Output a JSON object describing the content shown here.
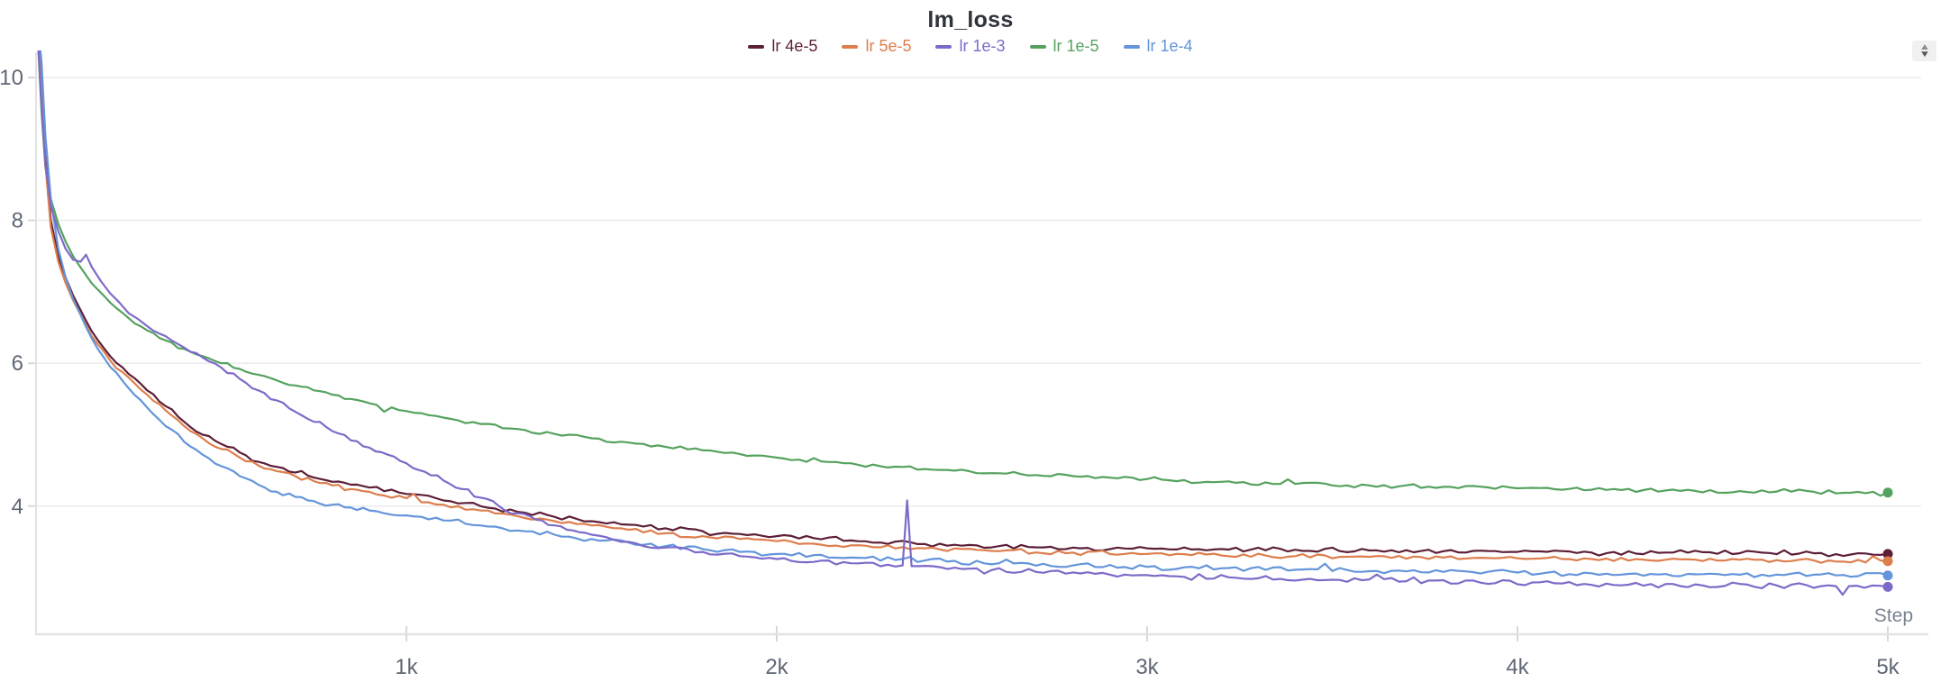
{
  "panel": {
    "stepper_button": {
      "up_icon": "▲",
      "down_icon": "▼"
    }
  },
  "chart_data": {
    "type": "line",
    "title": "lm_loss",
    "xlabel": "Step",
    "ylabel": "",
    "xlim": [
      0,
      5000
    ],
    "ylim": [
      2.2,
      10.35
    ],
    "grid": "horizontal-only",
    "legend_position": "top-center",
    "axis_color": "#e3e3e3",
    "gridline_color": "#ececec",
    "tick_color": "#d8d8d8",
    "tick_label_color": "#5f6775",
    "x_ticks": [
      {
        "label": "1k",
        "value": 1000
      },
      {
        "label": "2k",
        "value": 2000
      },
      {
        "label": "3k",
        "value": 3000
      },
      {
        "label": "4k",
        "value": 4000
      },
      {
        "label": "5k",
        "value": 5000
      }
    ],
    "y_ticks": [
      {
        "label": "10",
        "value": 10
      },
      {
        "label": "8",
        "value": 8
      },
      {
        "label": "6",
        "value": 6
      },
      {
        "label": "4",
        "value": 4
      }
    ],
    "series": [
      {
        "name": "lr 4e-5",
        "color": "#5d1f38",
        "noise": 0.04,
        "points": [
          [
            0,
            11
          ],
          [
            15,
            9.9
          ],
          [
            25,
            8.9
          ],
          [
            40,
            8.0
          ],
          [
            60,
            7.5
          ],
          [
            80,
            7.2
          ],
          [
            100,
            6.95
          ],
          [
            150,
            6.45
          ],
          [
            200,
            6.1
          ],
          [
            250,
            5.85
          ],
          [
            300,
            5.62
          ],
          [
            350,
            5.4
          ],
          [
            400,
            5.18
          ],
          [
            450,
            5.0
          ],
          [
            500,
            4.87
          ],
          [
            550,
            4.75
          ],
          [
            600,
            4.62
          ],
          [
            650,
            4.55
          ],
          [
            700,
            4.47
          ],
          [
            750,
            4.4
          ],
          [
            800,
            4.34
          ],
          [
            850,
            4.3
          ],
          [
            900,
            4.26
          ],
          [
            1000,
            4.17
          ],
          [
            1100,
            4.08
          ],
          [
            1200,
            4.0
          ],
          [
            1300,
            3.92
          ],
          [
            1400,
            3.85
          ],
          [
            1500,
            3.79
          ],
          [
            1600,
            3.74
          ],
          [
            1700,
            3.69
          ],
          [
            1800,
            3.65
          ],
          [
            1900,
            3.61
          ],
          [
            2000,
            3.58
          ],
          [
            2200,
            3.52
          ],
          [
            2400,
            3.47
          ],
          [
            2600,
            3.44
          ],
          [
            2800,
            3.42
          ],
          [
            3000,
            3.41
          ],
          [
            3200,
            3.4
          ],
          [
            3400,
            3.39
          ],
          [
            3600,
            3.38
          ],
          [
            3800,
            3.37
          ],
          [
            4000,
            3.36
          ],
          [
            4200,
            3.35
          ],
          [
            4400,
            3.35
          ],
          [
            4600,
            3.34
          ],
          [
            4800,
            3.34
          ],
          [
            5000,
            3.33
          ]
        ]
      },
      {
        "name": "lr 5e-5",
        "color": "#dd7e4d",
        "noise": 0.04,
        "points": [
          [
            0,
            11
          ],
          [
            15,
            9.8
          ],
          [
            25,
            8.8
          ],
          [
            40,
            7.9
          ],
          [
            60,
            7.42
          ],
          [
            80,
            7.12
          ],
          [
            100,
            6.88
          ],
          [
            150,
            6.38
          ],
          [
            200,
            6.04
          ],
          [
            250,
            5.8
          ],
          [
            300,
            5.56
          ],
          [
            350,
            5.34
          ],
          [
            400,
            5.12
          ],
          [
            450,
            4.95
          ],
          [
            500,
            4.8
          ],
          [
            550,
            4.68
          ],
          [
            600,
            4.57
          ],
          [
            650,
            4.49
          ],
          [
            700,
            4.42
          ],
          [
            750,
            4.35
          ],
          [
            800,
            4.29
          ],
          [
            850,
            4.24
          ],
          [
            900,
            4.2
          ],
          [
            1000,
            4.11
          ],
          [
            1100,
            4.02
          ],
          [
            1200,
            3.94
          ],
          [
            1300,
            3.86
          ],
          [
            1400,
            3.79
          ],
          [
            1500,
            3.73
          ],
          [
            1600,
            3.67
          ],
          [
            1700,
            3.62
          ],
          [
            1800,
            3.58
          ],
          [
            1900,
            3.54
          ],
          [
            2000,
            3.51
          ],
          [
            2200,
            3.45
          ],
          [
            2400,
            3.41
          ],
          [
            2600,
            3.37
          ],
          [
            2800,
            3.35
          ],
          [
            3000,
            3.33
          ],
          [
            3200,
            3.31
          ],
          [
            3400,
            3.3
          ],
          [
            3600,
            3.29
          ],
          [
            3800,
            3.28
          ],
          [
            4000,
            3.27
          ],
          [
            4200,
            3.26
          ],
          [
            4400,
            3.25
          ],
          [
            4600,
            3.25
          ],
          [
            4800,
            3.24
          ],
          [
            5000,
            3.23
          ]
        ]
      },
      {
        "name": "lr 1e-3",
        "color": "#7d6ac8",
        "noise": 0.045,
        "points": [
          [
            0,
            11
          ],
          [
            15,
            9.6
          ],
          [
            25,
            8.8
          ],
          [
            40,
            8.2
          ],
          [
            60,
            7.85
          ],
          [
            80,
            7.6
          ],
          [
            100,
            7.45
          ],
          [
            120,
            7.42
          ],
          [
            135,
            7.52
          ],
          [
            150,
            7.35
          ],
          [
            175,
            7.15
          ],
          [
            200,
            6.98
          ],
          [
            225,
            6.85
          ],
          [
            250,
            6.7
          ],
          [
            275,
            6.62
          ],
          [
            300,
            6.52
          ],
          [
            350,
            6.38
          ],
          [
            400,
            6.22
          ],
          [
            450,
            6.08
          ],
          [
            500,
            5.94
          ],
          [
            550,
            5.78
          ],
          [
            600,
            5.62
          ],
          [
            650,
            5.48
          ],
          [
            700,
            5.32
          ],
          [
            750,
            5.18
          ],
          [
            800,
            5.05
          ],
          [
            850,
            4.92
          ],
          [
            900,
            4.82
          ],
          [
            950,
            4.72
          ],
          [
            1000,
            4.6
          ],
          [
            1050,
            4.48
          ],
          [
            1100,
            4.36
          ],
          [
            1150,
            4.24
          ],
          [
            1200,
            4.12
          ],
          [
            1250,
            4.0
          ],
          [
            1300,
            3.9
          ],
          [
            1350,
            3.81
          ],
          [
            1400,
            3.73
          ],
          [
            1450,
            3.66
          ],
          [
            1500,
            3.6
          ],
          [
            1600,
            3.5
          ],
          [
            1700,
            3.42
          ],
          [
            1800,
            3.36
          ],
          [
            1900,
            3.3
          ],
          [
            2000,
            3.26
          ],
          [
            2100,
            3.22
          ],
          [
            2200,
            3.2
          ],
          [
            2300,
            3.18
          ],
          [
            2340,
            3.17
          ],
          [
            2352,
            4.08
          ],
          [
            2364,
            3.16
          ],
          [
            2500,
            3.12
          ],
          [
            2700,
            3.08
          ],
          [
            2900,
            3.04
          ],
          [
            3100,
            3.01
          ],
          [
            3300,
            2.99
          ],
          [
            3500,
            2.97
          ],
          [
            3700,
            2.95
          ],
          [
            3900,
            2.93
          ],
          [
            4100,
            2.92
          ],
          [
            4300,
            2.9
          ],
          [
            4500,
            2.89
          ],
          [
            4700,
            2.89
          ],
          [
            4860,
            2.88
          ],
          [
            4878,
            2.76
          ],
          [
            4895,
            2.88
          ],
          [
            5000,
            2.87
          ]
        ]
      },
      {
        "name": "lr 1e-5",
        "color": "#55a25f",
        "noise": 0.035,
        "points": [
          [
            0,
            11
          ],
          [
            15,
            9.5
          ],
          [
            25,
            8.75
          ],
          [
            40,
            8.3
          ],
          [
            60,
            7.95
          ],
          [
            80,
            7.7
          ],
          [
            100,
            7.5
          ],
          [
            150,
            7.12
          ],
          [
            200,
            6.85
          ],
          [
            250,
            6.63
          ],
          [
            300,
            6.46
          ],
          [
            350,
            6.32
          ],
          [
            400,
            6.2
          ],
          [
            450,
            6.1
          ],
          [
            500,
            6.0
          ],
          [
            550,
            5.92
          ],
          [
            600,
            5.84
          ],
          [
            650,
            5.76
          ],
          [
            700,
            5.69
          ],
          [
            750,
            5.62
          ],
          [
            800,
            5.56
          ],
          [
            850,
            5.5
          ],
          [
            900,
            5.44
          ],
          [
            1000,
            5.33
          ],
          [
            1100,
            5.24
          ],
          [
            1200,
            5.15
          ],
          [
            1300,
            5.08
          ],
          [
            1400,
            5.01
          ],
          [
            1500,
            4.95
          ],
          [
            1600,
            4.89
          ],
          [
            1700,
            4.83
          ],
          [
            1800,
            4.78
          ],
          [
            1900,
            4.73
          ],
          [
            2000,
            4.68
          ],
          [
            2200,
            4.6
          ],
          [
            2400,
            4.52
          ],
          [
            2600,
            4.46
          ],
          [
            2800,
            4.42
          ],
          [
            3000,
            4.38
          ],
          [
            3200,
            4.34
          ],
          [
            3400,
            4.31
          ],
          [
            3600,
            4.29
          ],
          [
            3800,
            4.27
          ],
          [
            4000,
            4.25
          ],
          [
            4200,
            4.23
          ],
          [
            4400,
            4.22
          ],
          [
            4600,
            4.21
          ],
          [
            4800,
            4.2
          ],
          [
            5000,
            4.19
          ]
        ]
      },
      {
        "name": "lr 1e-4",
        "color": "#6495da",
        "noise": 0.045,
        "points": [
          [
            0,
            11
          ],
          [
            15,
            10.2
          ],
          [
            25,
            9.2
          ],
          [
            40,
            8.3
          ],
          [
            60,
            7.6
          ],
          [
            80,
            7.2
          ],
          [
            100,
            6.9
          ],
          [
            150,
            6.35
          ],
          [
            200,
            5.95
          ],
          [
            250,
            5.65
          ],
          [
            300,
            5.38
          ],
          [
            350,
            5.12
          ],
          [
            400,
            4.9
          ],
          [
            450,
            4.72
          ],
          [
            500,
            4.56
          ],
          [
            550,
            4.42
          ],
          [
            600,
            4.3
          ],
          [
            650,
            4.2
          ],
          [
            700,
            4.13
          ],
          [
            750,
            4.07
          ],
          [
            800,
            4.02
          ],
          [
            850,
            3.98
          ],
          [
            900,
            3.94
          ],
          [
            1000,
            3.87
          ],
          [
            1100,
            3.8
          ],
          [
            1200,
            3.73
          ],
          [
            1300,
            3.66
          ],
          [
            1400,
            3.6
          ],
          [
            1500,
            3.54
          ],
          [
            1600,
            3.49
          ],
          [
            1700,
            3.44
          ],
          [
            1800,
            3.4
          ],
          [
            1900,
            3.36
          ],
          [
            2000,
            3.33
          ],
          [
            2200,
            3.28
          ],
          [
            2400,
            3.24
          ],
          [
            2600,
            3.2
          ],
          [
            2800,
            3.17
          ],
          [
            3000,
            3.15
          ],
          [
            3200,
            3.13
          ],
          [
            3400,
            3.11
          ],
          [
            3600,
            3.09
          ],
          [
            3800,
            3.08
          ],
          [
            4000,
            3.07
          ],
          [
            4200,
            3.06
          ],
          [
            4400,
            3.05
          ],
          [
            4600,
            3.04
          ],
          [
            4800,
            3.04
          ],
          [
            5000,
            3.03
          ]
        ]
      }
    ]
  }
}
